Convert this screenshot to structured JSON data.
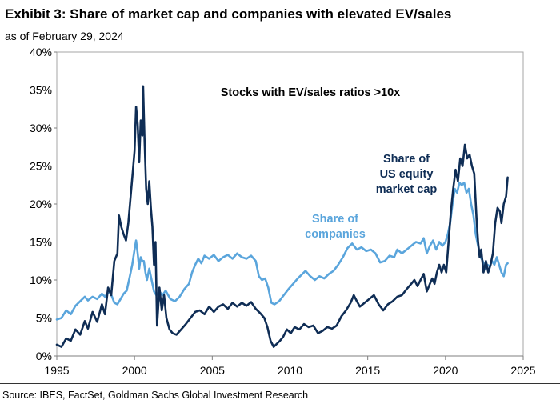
{
  "header": {
    "title": "Exhibit 3: Share of market cap and companies with elevated EV/sales",
    "subtitle": "as of February 29, 2024"
  },
  "footer": {
    "source": "Source: IBES, FactSet, Goldman Sachs Global Investment Research"
  },
  "colors": {
    "market_cap": "#0f2d55",
    "companies": "#5aa5dc",
    "frame": "#a6a6a6",
    "axis": "#7f7f7f"
  },
  "chart_data": {
    "type": "line",
    "title": "Stocks with EV/sales ratios >10x",
    "xlabel": "",
    "ylabel": "",
    "xlim": [
      1995,
      2025
    ],
    "ylim": [
      0,
      40
    ],
    "x_ticks": [
      "1995",
      "2000",
      "2005",
      "2010",
      "2015",
      "2020",
      "2025"
    ],
    "y_ticks": [
      "0%",
      "5%",
      "10%",
      "15%",
      "20%",
      "25%",
      "30%",
      "35%",
      "40%"
    ],
    "grid": false,
    "legend": "inline labels",
    "series": [
      {
        "name": "Share of US equity market cap",
        "label_lines": [
          "Share of",
          "US equity",
          "market cap"
        ],
        "points": [
          [
            1995.0,
            1.5
          ],
          [
            1995.3,
            1.2
          ],
          [
            1995.6,
            2.3
          ],
          [
            1995.9,
            2.0
          ],
          [
            1996.2,
            3.5
          ],
          [
            1996.5,
            2.8
          ],
          [
            1996.8,
            4.6
          ],
          [
            1997.0,
            3.6
          ],
          [
            1997.3,
            5.8
          ],
          [
            1997.6,
            4.5
          ],
          [
            1997.9,
            6.8
          ],
          [
            1998.1,
            5.5
          ],
          [
            1998.3,
            9.0
          ],
          [
            1998.5,
            8.0
          ],
          [
            1998.7,
            12.5
          ],
          [
            1998.9,
            13.5
          ],
          [
            1999.0,
            18.5
          ],
          [
            1999.15,
            17.0
          ],
          [
            1999.3,
            16.0
          ],
          [
            1999.45,
            15.2
          ],
          [
            1999.6,
            17.5
          ],
          [
            1999.75,
            21.0
          ],
          [
            1999.9,
            24.5
          ],
          [
            2000.0,
            27.0
          ],
          [
            2000.1,
            32.8
          ],
          [
            2000.2,
            30.5
          ],
          [
            2000.3,
            25.5
          ],
          [
            2000.4,
            31.0
          ],
          [
            2000.5,
            29.0
          ],
          [
            2000.55,
            35.5
          ],
          [
            2000.65,
            28.0
          ],
          [
            2000.75,
            22.0
          ],
          [
            2000.85,
            20.0
          ],
          [
            2000.95,
            23.0
          ],
          [
            2001.05,
            19.5
          ],
          [
            2001.15,
            17.0
          ],
          [
            2001.25,
            12.0
          ],
          [
            2001.35,
            15.0
          ],
          [
            2001.45,
            4.0
          ],
          [
            2001.6,
            9.0
          ],
          [
            2001.75,
            6.0
          ],
          [
            2001.9,
            8.0
          ],
          [
            2002.05,
            5.0
          ],
          [
            2002.25,
            3.5
          ],
          [
            2002.45,
            3.0
          ],
          [
            2002.7,
            2.8
          ],
          [
            2003.0,
            3.5
          ],
          [
            2003.3,
            4.2
          ],
          [
            2003.6,
            5.0
          ],
          [
            2003.9,
            5.8
          ],
          [
            2004.2,
            6.0
          ],
          [
            2004.5,
            5.5
          ],
          [
            2004.8,
            6.5
          ],
          [
            2005.1,
            5.8
          ],
          [
            2005.4,
            6.5
          ],
          [
            2005.7,
            6.8
          ],
          [
            2006.0,
            6.2
          ],
          [
            2006.3,
            7.0
          ],
          [
            2006.6,
            6.5
          ],
          [
            2006.9,
            7.0
          ],
          [
            2007.2,
            6.6
          ],
          [
            2007.5,
            7.1
          ],
          [
            2007.8,
            6.2
          ],
          [
            2008.1,
            5.6
          ],
          [
            2008.35,
            5.0
          ],
          [
            2008.55,
            3.8
          ],
          [
            2008.75,
            2.0
          ],
          [
            2008.95,
            1.2
          ],
          [
            2009.15,
            1.6
          ],
          [
            2009.35,
            2.0
          ],
          [
            2009.55,
            2.5
          ],
          [
            2009.8,
            3.5
          ],
          [
            2010.05,
            3.0
          ],
          [
            2010.3,
            3.8
          ],
          [
            2010.6,
            3.5
          ],
          [
            2010.9,
            4.2
          ],
          [
            2011.2,
            3.8
          ],
          [
            2011.5,
            4.0
          ],
          [
            2011.8,
            3.0
          ],
          [
            2012.1,
            3.3
          ],
          [
            2012.4,
            3.8
          ],
          [
            2012.7,
            3.6
          ],
          [
            2013.0,
            4.0
          ],
          [
            2013.3,
            5.2
          ],
          [
            2013.6,
            6.0
          ],
          [
            2013.9,
            7.0
          ],
          [
            2014.1,
            8.0
          ],
          [
            2014.3,
            7.2
          ],
          [
            2014.5,
            6.5
          ],
          [
            2014.8,
            7.0
          ],
          [
            2015.1,
            7.5
          ],
          [
            2015.4,
            8.0
          ],
          [
            2015.7,
            6.8
          ],
          [
            2016.0,
            6.0
          ],
          [
            2016.3,
            6.8
          ],
          [
            2016.6,
            7.2
          ],
          [
            2016.9,
            7.8
          ],
          [
            2017.2,
            8.0
          ],
          [
            2017.5,
            8.8
          ],
          [
            2017.8,
            9.5
          ],
          [
            2018.0,
            10.0
          ],
          [
            2018.2,
            9.2
          ],
          [
            2018.4,
            10.0
          ],
          [
            2018.6,
            10.8
          ],
          [
            2018.8,
            8.5
          ],
          [
            2019.0,
            9.5
          ],
          [
            2019.15,
            10.2
          ],
          [
            2019.3,
            9.5
          ],
          [
            2019.45,
            11.0
          ],
          [
            2019.6,
            12.0
          ],
          [
            2019.75,
            11.0
          ],
          [
            2019.9,
            12.0
          ],
          [
            2020.05,
            11.0
          ],
          [
            2020.2,
            15.0
          ],
          [
            2020.35,
            19.0
          ],
          [
            2020.5,
            22.0
          ],
          [
            2020.65,
            24.5
          ],
          [
            2020.8,
            23.0
          ],
          [
            2020.95,
            26.0
          ],
          [
            2021.1,
            25.0
          ],
          [
            2021.25,
            27.8
          ],
          [
            2021.4,
            26.0
          ],
          [
            2021.55,
            26.5
          ],
          [
            2021.7,
            25.0
          ],
          [
            2021.85,
            24.0
          ],
          [
            2022.0,
            18.0
          ],
          [
            2022.1,
            15.0
          ],
          [
            2022.2,
            13.0
          ],
          [
            2022.3,
            14.0
          ],
          [
            2022.45,
            11.0
          ],
          [
            2022.6,
            12.5
          ],
          [
            2022.75,
            11.0
          ],
          [
            2022.9,
            12.0
          ],
          [
            2023.05,
            13.5
          ],
          [
            2023.2,
            17.5
          ],
          [
            2023.35,
            19.5
          ],
          [
            2023.5,
            19.0
          ],
          [
            2023.6,
            17.5
          ],
          [
            2023.75,
            20.0
          ],
          [
            2023.9,
            21.0
          ],
          [
            2024.0,
            23.5
          ]
        ]
      },
      {
        "name": "Share of companies",
        "label_lines": [
          "Share of",
          "companies"
        ],
        "points": [
          [
            1995.0,
            4.8
          ],
          [
            1995.3,
            5.0
          ],
          [
            1995.6,
            6.0
          ],
          [
            1995.9,
            5.5
          ],
          [
            1996.2,
            6.6
          ],
          [
            1996.5,
            7.2
          ],
          [
            1996.8,
            7.8
          ],
          [
            1997.0,
            7.3
          ],
          [
            1997.3,
            7.8
          ],
          [
            1997.6,
            7.5
          ],
          [
            1997.9,
            8.2
          ],
          [
            1998.1,
            7.8
          ],
          [
            1998.4,
            8.6
          ],
          [
            1998.7,
            7.0
          ],
          [
            1998.9,
            6.8
          ],
          [
            1999.1,
            7.5
          ],
          [
            1999.3,
            8.2
          ],
          [
            1999.5,
            8.6
          ],
          [
            1999.7,
            10.5
          ],
          [
            1999.85,
            12.0
          ],
          [
            2000.0,
            14.0
          ],
          [
            2000.1,
            15.2
          ],
          [
            2000.2,
            13.5
          ],
          [
            2000.3,
            11.5
          ],
          [
            2000.4,
            13.0
          ],
          [
            2000.5,
            12.5
          ],
          [
            2000.6,
            12.5
          ],
          [
            2000.7,
            11.0
          ],
          [
            2000.8,
            10.0
          ],
          [
            2000.95,
            11.5
          ],
          [
            2001.1,
            10.0
          ],
          [
            2001.25,
            8.5
          ],
          [
            2001.4,
            8.0
          ],
          [
            2001.6,
            8.5
          ],
          [
            2001.8,
            8.0
          ],
          [
            2002.0,
            8.6
          ],
          [
            2002.3,
            7.5
          ],
          [
            2002.6,
            7.2
          ],
          [
            2002.9,
            7.8
          ],
          [
            2003.2,
            8.8
          ],
          [
            2003.5,
            9.5
          ],
          [
            2003.7,
            11.0
          ],
          [
            2003.9,
            12.0
          ],
          [
            2004.1,
            12.8
          ],
          [
            2004.3,
            12.2
          ],
          [
            2004.5,
            13.2
          ],
          [
            2004.8,
            12.8
          ],
          [
            2005.1,
            13.3
          ],
          [
            2005.4,
            12.5
          ],
          [
            2005.7,
            13.0
          ],
          [
            2006.0,
            13.3
          ],
          [
            2006.3,
            12.8
          ],
          [
            2006.6,
            13.5
          ],
          [
            2006.9,
            13.0
          ],
          [
            2007.2,
            12.8
          ],
          [
            2007.5,
            13.2
          ],
          [
            2007.8,
            12.5
          ],
          [
            2008.0,
            10.5
          ],
          [
            2008.2,
            10.0
          ],
          [
            2008.4,
            10.2
          ],
          [
            2008.6,
            9.0
          ],
          [
            2008.8,
            7.0
          ],
          [
            2009.0,
            6.8
          ],
          [
            2009.3,
            7.2
          ],
          [
            2009.6,
            8.0
          ],
          [
            2009.9,
            8.8
          ],
          [
            2010.2,
            9.5
          ],
          [
            2010.5,
            10.2
          ],
          [
            2010.8,
            10.8
          ],
          [
            2011.0,
            11.2
          ],
          [
            2011.3,
            10.5
          ],
          [
            2011.6,
            10.0
          ],
          [
            2011.9,
            10.5
          ],
          [
            2012.2,
            10.2
          ],
          [
            2012.5,
            10.8
          ],
          [
            2012.8,
            11.2
          ],
          [
            2013.1,
            12.0
          ],
          [
            2013.4,
            13.0
          ],
          [
            2013.7,
            14.2
          ],
          [
            2014.0,
            14.8
          ],
          [
            2014.3,
            14.0
          ],
          [
            2014.6,
            14.3
          ],
          [
            2014.9,
            13.8
          ],
          [
            2015.2,
            14.0
          ],
          [
            2015.5,
            13.5
          ],
          [
            2015.8,
            12.3
          ],
          [
            2016.1,
            12.5
          ],
          [
            2016.4,
            13.2
          ],
          [
            2016.7,
            13.0
          ],
          [
            2016.9,
            14.0
          ],
          [
            2017.2,
            13.5
          ],
          [
            2017.5,
            14.0
          ],
          [
            2017.8,
            14.5
          ],
          [
            2018.1,
            15.0
          ],
          [
            2018.4,
            14.8
          ],
          [
            2018.6,
            15.5
          ],
          [
            2018.8,
            13.5
          ],
          [
            2019.0,
            14.5
          ],
          [
            2019.2,
            15.2
          ],
          [
            2019.4,
            14.0
          ],
          [
            2019.6,
            15.0
          ],
          [
            2019.8,
            14.5
          ],
          [
            2020.0,
            15.0
          ],
          [
            2020.15,
            16.0
          ],
          [
            2020.3,
            17.5
          ],
          [
            2020.45,
            20.0
          ],
          [
            2020.6,
            22.0
          ],
          [
            2020.75,
            21.5
          ],
          [
            2020.9,
            22.8
          ],
          [
            2021.05,
            22.5
          ],
          [
            2021.2,
            22.8
          ],
          [
            2021.35,
            21.5
          ],
          [
            2021.5,
            22.0
          ],
          [
            2021.65,
            20.0
          ],
          [
            2021.8,
            18.5
          ],
          [
            2021.95,
            16.0
          ],
          [
            2022.1,
            14.5
          ],
          [
            2022.25,
            13.0
          ],
          [
            2022.4,
            12.5
          ],
          [
            2022.55,
            11.5
          ],
          [
            2022.7,
            12.0
          ],
          [
            2022.85,
            11.8
          ],
          [
            2023.0,
            12.5
          ],
          [
            2023.15,
            12.0
          ],
          [
            2023.3,
            13.0
          ],
          [
            2023.45,
            12.0
          ],
          [
            2023.6,
            11.0
          ],
          [
            2023.75,
            10.5
          ],
          [
            2023.9,
            12.0
          ],
          [
            2024.0,
            12.2
          ]
        ]
      }
    ]
  }
}
